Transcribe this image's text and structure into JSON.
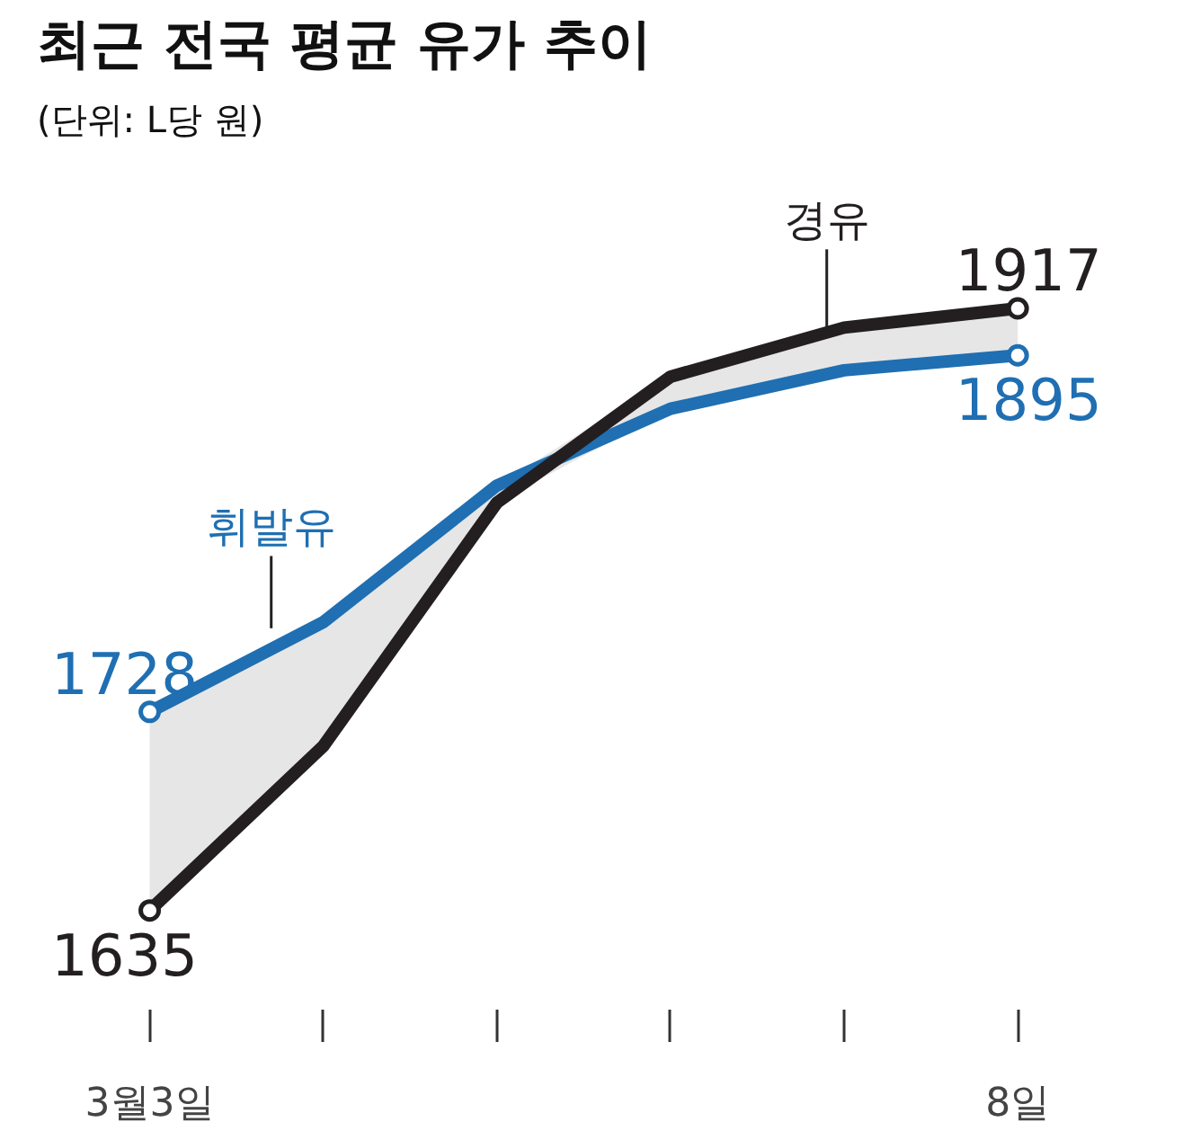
{
  "chart_data": {
    "type": "line",
    "title": "최근 전국 평균 유가 추이",
    "subtitle": "(단위: L당 원)",
    "categories": [
      "3월3일",
      null,
      null,
      null,
      null,
      "8일"
    ],
    "tick_labels": "x",
    "grid": false,
    "series": [
      {
        "name": "휘발유",
        "color": "#1f6fb2",
        "values": [
          1728,
          1770,
          1834,
          1870,
          1888,
          1895
        ],
        "value_labels": [
          "1728",
          null,
          null,
          null,
          null,
          "1895"
        ]
      },
      {
        "name": "경유",
        "color": "#231f20",
        "values": [
          1635,
          1712,
          1826,
          1885,
          1908,
          1917
        ],
        "value_labels": [
          "1635",
          null,
          null,
          null,
          null,
          "1917"
        ]
      }
    ]
  }
}
